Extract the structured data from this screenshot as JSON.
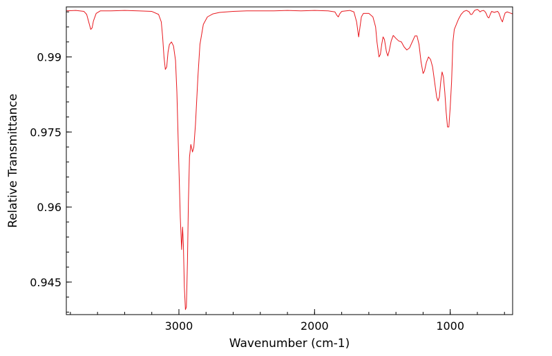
{
  "chart_data": {
    "type": "line",
    "title": "",
    "xlabel": "Wavenumber (cm-1)",
    "ylabel": "Relative Transmittance",
    "x_reversed": true,
    "xlim": [
      3830,
      540
    ],
    "ylim": [
      0.9385,
      1.0
    ],
    "x_major_ticks": [
      3000,
      2000,
      1000
    ],
    "x_minor_step": 200,
    "y_major_ticks": [
      0.99,
      0.975,
      0.96,
      0.945
    ],
    "y_minor_step": 0.003,
    "grid": false,
    "legend": "none",
    "line_color": "#e8161c",
    "series": [
      {
        "values": [
          [
            3830,
            0.9992
          ],
          [
            3760,
            0.9993
          ],
          [
            3700,
            0.9991
          ],
          [
            3680,
            0.9985
          ],
          [
            3660,
            0.9965
          ],
          [
            3650,
            0.9955
          ],
          [
            3640,
            0.9958
          ],
          [
            3630,
            0.9972
          ],
          [
            3610,
            0.9987
          ],
          [
            3580,
            0.9992
          ],
          [
            3500,
            0.9992
          ],
          [
            3400,
            0.9993
          ],
          [
            3300,
            0.9992
          ],
          [
            3200,
            0.9991
          ],
          [
            3150,
            0.9985
          ],
          [
            3130,
            0.997
          ],
          [
            3120,
            0.994
          ],
          [
            3110,
            0.99
          ],
          [
            3100,
            0.9875
          ],
          [
            3090,
            0.988
          ],
          [
            3080,
            0.991
          ],
          [
            3070,
            0.9925
          ],
          [
            3055,
            0.993
          ],
          [
            3040,
            0.9922
          ],
          [
            3025,
            0.9893
          ],
          [
            3015,
            0.983
          ],
          [
            3005,
            0.973
          ],
          [
            2990,
            0.958
          ],
          [
            2980,
            0.9515
          ],
          [
            2973,
            0.956
          ],
          [
            2967,
            0.9525
          ],
          [
            2960,
            0.944
          ],
          [
            2952,
            0.9395
          ],
          [
            2945,
            0.94
          ],
          [
            2937,
            0.949
          ],
          [
            2930,
            0.961
          ],
          [
            2922,
            0.97
          ],
          [
            2912,
            0.9725
          ],
          [
            2900,
            0.971
          ],
          [
            2890,
            0.972
          ],
          [
            2878,
            0.9765
          ],
          [
            2860,
            0.986
          ],
          [
            2845,
            0.9925
          ],
          [
            2820,
            0.9965
          ],
          [
            2790,
            0.998
          ],
          [
            2750,
            0.9986
          ],
          [
            2700,
            0.9989
          ],
          [
            2600,
            0.9991
          ],
          [
            2500,
            0.9992
          ],
          [
            2400,
            0.9992
          ],
          [
            2300,
            0.9992
          ],
          [
            2200,
            0.9993
          ],
          [
            2100,
            0.9992
          ],
          [
            2000,
            0.9993
          ],
          [
            1900,
            0.9992
          ],
          [
            1850,
            0.999
          ],
          [
            1835,
            0.9983
          ],
          [
            1825,
            0.998
          ],
          [
            1815,
            0.9986
          ],
          [
            1800,
            0.9991
          ],
          [
            1740,
            0.9993
          ],
          [
            1710,
            0.999
          ],
          [
            1690,
            0.997
          ],
          [
            1675,
            0.994
          ],
          [
            1665,
            0.996
          ],
          [
            1655,
            0.998
          ],
          [
            1640,
            0.9987
          ],
          [
            1600,
            0.9987
          ],
          [
            1570,
            0.998
          ],
          [
            1550,
            0.996
          ],
          [
            1540,
            0.993
          ],
          [
            1525,
            0.99
          ],
          [
            1515,
            0.9905
          ],
          [
            1505,
            0.9925
          ],
          [
            1495,
            0.994
          ],
          [
            1485,
            0.9935
          ],
          [
            1470,
            0.991
          ],
          [
            1460,
            0.9902
          ],
          [
            1450,
            0.9912
          ],
          [
            1435,
            0.9932
          ],
          [
            1420,
            0.9943
          ],
          [
            1400,
            0.9937
          ],
          [
            1380,
            0.9932
          ],
          [
            1360,
            0.993
          ],
          [
            1340,
            0.992
          ],
          [
            1320,
            0.9914
          ],
          [
            1300,
            0.9918
          ],
          [
            1280,
            0.993
          ],
          [
            1260,
            0.9942
          ],
          [
            1245,
            0.9942
          ],
          [
            1230,
            0.9925
          ],
          [
            1215,
            0.989
          ],
          [
            1200,
            0.9867
          ],
          [
            1190,
            0.9872
          ],
          [
            1175,
            0.989
          ],
          [
            1160,
            0.99
          ],
          [
            1145,
            0.9895
          ],
          [
            1130,
            0.988
          ],
          [
            1115,
            0.985
          ],
          [
            1100,
            0.982
          ],
          [
            1090,
            0.9812
          ],
          [
            1080,
            0.982
          ],
          [
            1070,
            0.985
          ],
          [
            1060,
            0.987
          ],
          [
            1050,
            0.986
          ],
          [
            1040,
            0.983
          ],
          [
            1030,
            0.979
          ],
          [
            1020,
            0.976
          ],
          [
            1010,
            0.976
          ],
          [
            1000,
            0.98
          ],
          [
            990,
            0.985
          ],
          [
            980,
            0.993
          ],
          [
            970,
            0.9955
          ],
          [
            955,
            0.9965
          ],
          [
            940,
            0.9975
          ],
          [
            920,
            0.9985
          ],
          [
            900,
            0.9991
          ],
          [
            880,
            0.9993
          ],
          [
            860,
            0.999
          ],
          [
            850,
            0.9985
          ],
          [
            840,
            0.9985
          ],
          [
            820,
            0.9993
          ],
          [
            800,
            0.9995
          ],
          [
            790,
            0.9993
          ],
          [
            780,
            0.999
          ],
          [
            770,
            0.9992
          ],
          [
            755,
            0.9993
          ],
          [
            745,
            0.9991
          ],
          [
            735,
            0.9987
          ],
          [
            725,
            0.998
          ],
          [
            715,
            0.9978
          ],
          [
            705,
            0.9985
          ],
          [
            695,
            0.9991
          ],
          [
            685,
            0.999
          ],
          [
            675,
            0.9989
          ],
          [
            665,
            0.999
          ],
          [
            650,
            0.9991
          ],
          [
            640,
            0.9987
          ],
          [
            625,
            0.9975
          ],
          [
            615,
            0.997
          ],
          [
            605,
            0.998
          ],
          [
            595,
            0.9988
          ],
          [
            580,
            0.999
          ],
          [
            560,
            0.9988
          ],
          [
            540,
            0.9986
          ]
        ]
      }
    ]
  }
}
